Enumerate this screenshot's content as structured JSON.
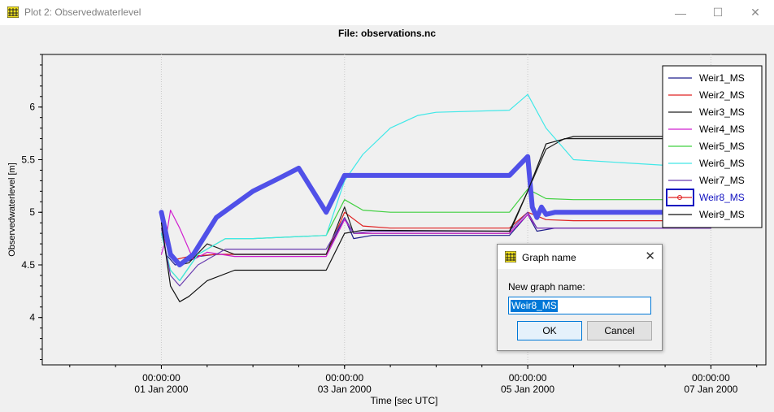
{
  "window": {
    "title": "Plot 2: Observedwaterlevel",
    "minimize_icon": "minimize-icon",
    "maximize_icon": "maximize-icon",
    "close_icon": "close-icon"
  },
  "chart_data": {
    "type": "line",
    "title": "File: observations.nc",
    "xlabel": "Time [sec UTC]",
    "ylabel": "Observedwaterlevel [m]",
    "x_unit": "days since 01 Jan 2000",
    "xlim": [
      -1.3,
      6.6
    ],
    "ylim": [
      3.55,
      6.5
    ],
    "y_ticks": [
      4,
      4.5,
      5,
      5.5,
      6
    ],
    "y_tick_labels": [
      "4",
      "4.5",
      "5",
      "5.5",
      "6"
    ],
    "x_ticks": [
      0,
      2,
      4,
      6
    ],
    "x_tick_labels_time": [
      "00:00:00",
      "00:00:00",
      "00:00:00",
      "00:00:00"
    ],
    "x_tick_labels_date": [
      "01 Jan 2000",
      "03 Jan 2000",
      "05 Jan 2000",
      "07 Jan 2000"
    ],
    "grid": true,
    "legend_position": "top-right",
    "series": [
      {
        "name": "Weir1_MS",
        "color": "#1e1e8c",
        "x": [
          0,
          0.05,
          0.15,
          0.25,
          0.4,
          0.6,
          1.0,
          1.8,
          2.0,
          2.1,
          2.3,
          3.8,
          4.0,
          4.1,
          4.3,
          6.0
        ],
        "y": [
          4.95,
          4.6,
          4.5,
          4.52,
          4.58,
          4.6,
          4.6,
          4.6,
          4.95,
          4.75,
          4.78,
          4.78,
          4.98,
          4.82,
          4.85,
          4.85
        ]
      },
      {
        "name": "Weir2_MS",
        "color": "#e02020",
        "x": [
          0,
          0.05,
          0.15,
          0.3,
          0.6,
          1.0,
          1.8,
          2.0,
          2.2,
          2.5,
          3.8,
          4.0,
          4.2,
          4.5,
          6.0
        ],
        "y": [
          4.95,
          4.7,
          4.55,
          4.58,
          4.6,
          4.6,
          4.6,
          5.0,
          4.87,
          4.85,
          4.85,
          5.0,
          4.93,
          4.92,
          4.92
        ]
      },
      {
        "name": "Weir3_MS",
        "color": "#202020",
        "x": [
          0,
          0.1,
          0.2,
          0.3,
          0.5,
          0.8,
          1.0,
          1.8,
          2.0,
          2.1,
          2.3,
          3.8,
          4.0,
          4.2,
          4.4,
          6.0
        ],
        "y": [
          4.9,
          4.6,
          4.5,
          4.52,
          4.7,
          4.6,
          4.6,
          4.6,
          5.05,
          4.8,
          4.8,
          4.8,
          5.2,
          5.6,
          5.7,
          5.7
        ]
      },
      {
        "name": "Weir4_MS",
        "color": "#d020d0",
        "x": [
          0,
          0.05,
          0.1,
          0.2,
          0.35,
          0.5,
          0.8,
          1.8,
          2.0,
          2.1,
          2.3,
          3.8,
          4.0,
          4.1,
          4.3,
          6.0
        ],
        "y": [
          4.6,
          4.75,
          5.02,
          4.85,
          4.55,
          4.62,
          4.58,
          4.58,
          4.93,
          4.8,
          4.8,
          4.8,
          4.98,
          4.85,
          4.85,
          4.85
        ]
      },
      {
        "name": "Weir5_MS",
        "color": "#40d040",
        "x": [
          0,
          0.1,
          0.2,
          0.4,
          0.7,
          1.0,
          1.8,
          2.0,
          2.2,
          2.5,
          3.8,
          4.0,
          4.2,
          4.5,
          6.0
        ],
        "y": [
          4.8,
          4.45,
          4.35,
          4.6,
          4.75,
          4.75,
          4.78,
          5.12,
          5.02,
          5.0,
          5.0,
          5.22,
          5.13,
          5.12,
          5.12
        ]
      },
      {
        "name": "Weir6_MS",
        "color": "#40e8e8",
        "x": [
          0,
          0.1,
          0.2,
          0.4,
          0.7,
          1.0,
          1.8,
          2.0,
          2.2,
          2.5,
          2.8,
          3.0,
          3.8,
          4.0,
          4.2,
          4.5,
          6.0
        ],
        "y": [
          4.8,
          4.45,
          4.35,
          4.6,
          4.75,
          4.75,
          4.78,
          5.3,
          5.55,
          5.8,
          5.92,
          5.95,
          5.97,
          6.12,
          5.8,
          5.5,
          5.42
        ]
      },
      {
        "name": "Weir7_MS",
        "color": "#6a3cb0",
        "x": [
          0,
          0.1,
          0.2,
          0.4,
          0.7,
          1.0,
          1.8,
          2.0,
          2.1,
          2.3,
          3.8,
          4.0,
          4.1,
          4.3,
          6.0
        ],
        "y": [
          4.85,
          4.4,
          4.3,
          4.5,
          4.65,
          4.65,
          4.65,
          4.95,
          4.8,
          4.82,
          4.82,
          5.0,
          4.85,
          4.85,
          4.85
        ]
      },
      {
        "name": "Weir8_MS",
        "color": "#5050e8",
        "x": [
          0,
          0.1,
          0.2,
          0.35,
          0.6,
          1.0,
          1.3,
          1.5,
          1.8,
          2.0,
          3.0,
          3.8,
          4.0,
          4.05,
          4.1,
          4.15,
          4.2,
          4.3,
          6.0
        ],
        "y": [
          5.0,
          4.6,
          4.5,
          4.6,
          4.95,
          5.2,
          5.33,
          5.42,
          5.0,
          5.35,
          5.35,
          5.35,
          5.53,
          5.05,
          4.95,
          5.05,
          4.98,
          5.0,
          5.0
        ]
      },
      {
        "name": "Weir9_MS",
        "color": "#111111",
        "x": [
          0,
          0.1,
          0.2,
          0.3,
          0.5,
          0.8,
          1.0,
          1.8,
          2.0,
          2.2,
          3.8,
          4.0,
          4.2,
          4.5,
          6.0
        ],
        "y": [
          4.9,
          4.3,
          4.15,
          4.2,
          4.35,
          4.45,
          4.45,
          4.45,
          4.8,
          4.83,
          4.82,
          5.2,
          5.65,
          5.72,
          5.72
        ]
      }
    ],
    "highlighted_series": "Weir8_MS"
  },
  "dialog": {
    "title": "Graph name",
    "label": "New graph name:",
    "input_value": "Weir8_MS",
    "ok_label": "OK",
    "cancel_label": "Cancel"
  }
}
